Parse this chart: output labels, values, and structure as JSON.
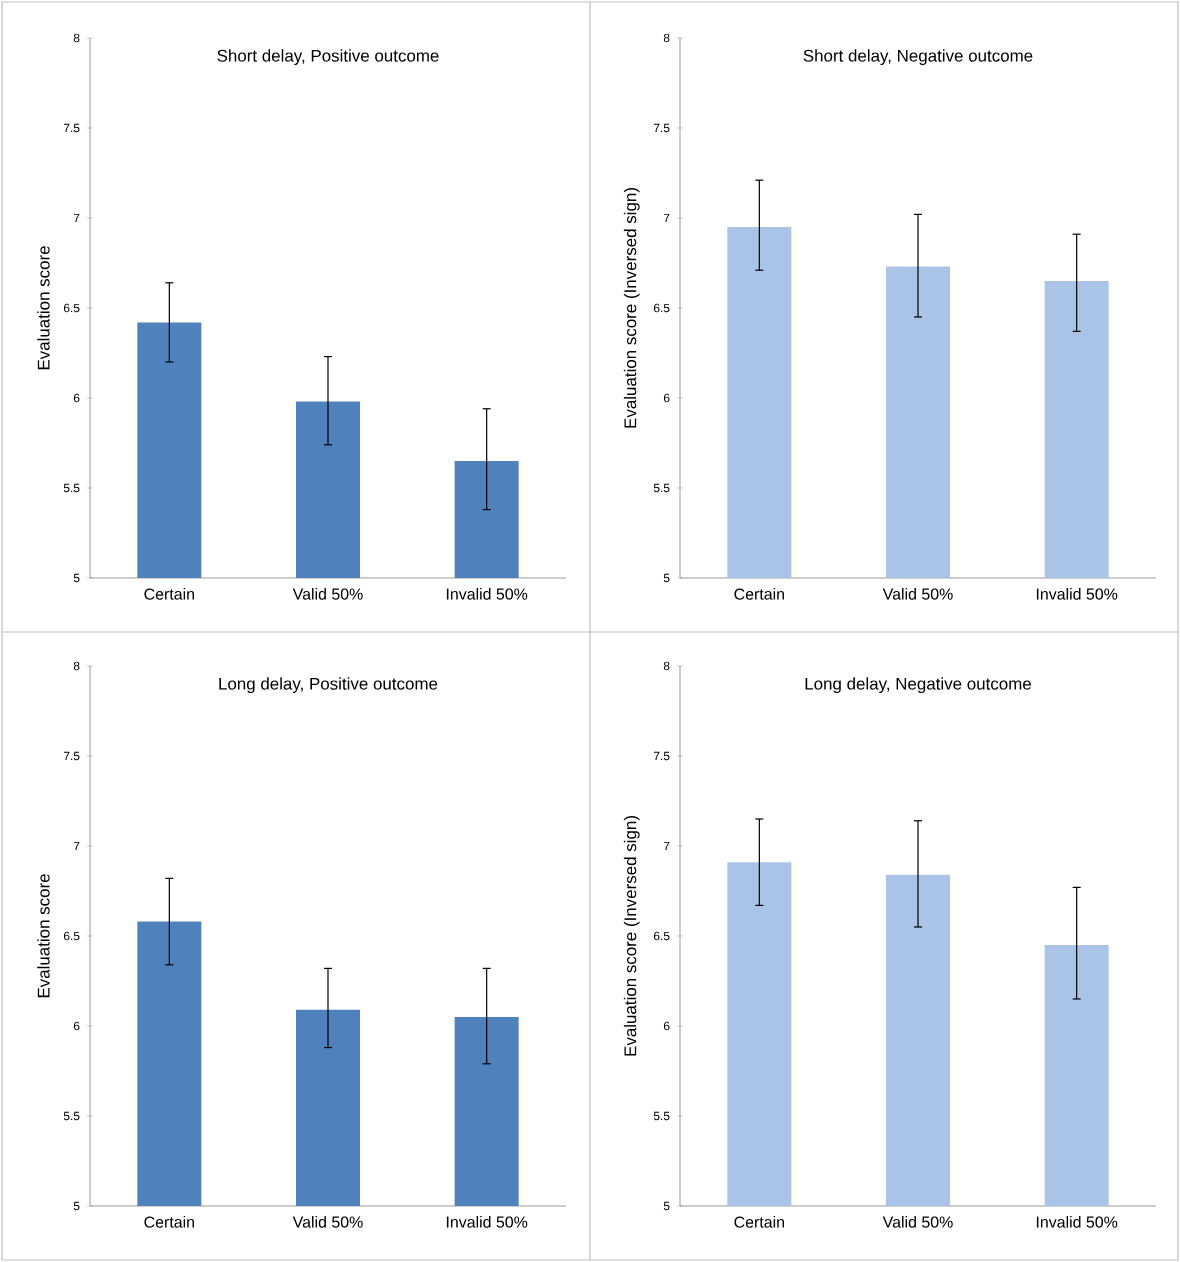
{
  "chart_data": [
    {
      "type": "bar",
      "title": "Short delay, Positive outcome",
      "ylabel": "Evaluation score",
      "categories": [
        "Certain",
        "Valid 50%",
        "Invalid 50%"
      ],
      "values": [
        6.42,
        5.98,
        5.65
      ],
      "errors": [
        [
          6.2,
          6.64
        ],
        [
          5.74,
          6.23
        ],
        [
          5.38,
          5.94
        ]
      ],
      "color": "#4f81bd",
      "ylim": [
        5,
        8
      ],
      "yticks": [
        5,
        5.5,
        6,
        6.5,
        7,
        7.5,
        8
      ]
    },
    {
      "type": "bar",
      "title": "Short delay, Negative outcome",
      "ylabel": "Evaluation score (Inversed sign)",
      "categories": [
        "Certain",
        "Valid 50%",
        "Invalid 50%"
      ],
      "values": [
        6.95,
        6.73,
        6.65
      ],
      "errors": [
        [
          6.71,
          7.21
        ],
        [
          6.45,
          7.02
        ],
        [
          6.37,
          6.91
        ]
      ],
      "color": "#a9c4e6",
      "ylim": [
        5,
        8
      ],
      "yticks": [
        5,
        5.5,
        6,
        6.5,
        7,
        7.5,
        8
      ]
    },
    {
      "type": "bar",
      "title": "Long delay, Positive outcome",
      "ylabel": "Evaluation score",
      "categories": [
        "Certain",
        "Valid 50%",
        "Invalid 50%"
      ],
      "values": [
        6.58,
        6.09,
        6.05
      ],
      "errors": [
        [
          6.34,
          6.82
        ],
        [
          5.88,
          6.32
        ],
        [
          5.79,
          6.32
        ]
      ],
      "color": "#4f81bd",
      "ylim": [
        5,
        8
      ],
      "yticks": [
        5,
        5.5,
        6,
        6.5,
        7,
        7.5,
        8
      ]
    },
    {
      "type": "bar",
      "title": "Long delay, Negative outcome",
      "ylabel": "Evaluation score (Inversed sign)",
      "categories": [
        "Certain",
        "Valid 50%",
        "Invalid 50%"
      ],
      "values": [
        6.91,
        6.84,
        6.45
      ],
      "errors": [
        [
          6.67,
          7.15
        ],
        [
          6.55,
          7.14
        ],
        [
          6.15,
          6.77
        ]
      ],
      "color": "#a9c4e6",
      "ylim": [
        5,
        8
      ],
      "yticks": [
        5,
        5.5,
        6,
        6.5,
        7,
        7.5,
        8
      ]
    }
  ]
}
